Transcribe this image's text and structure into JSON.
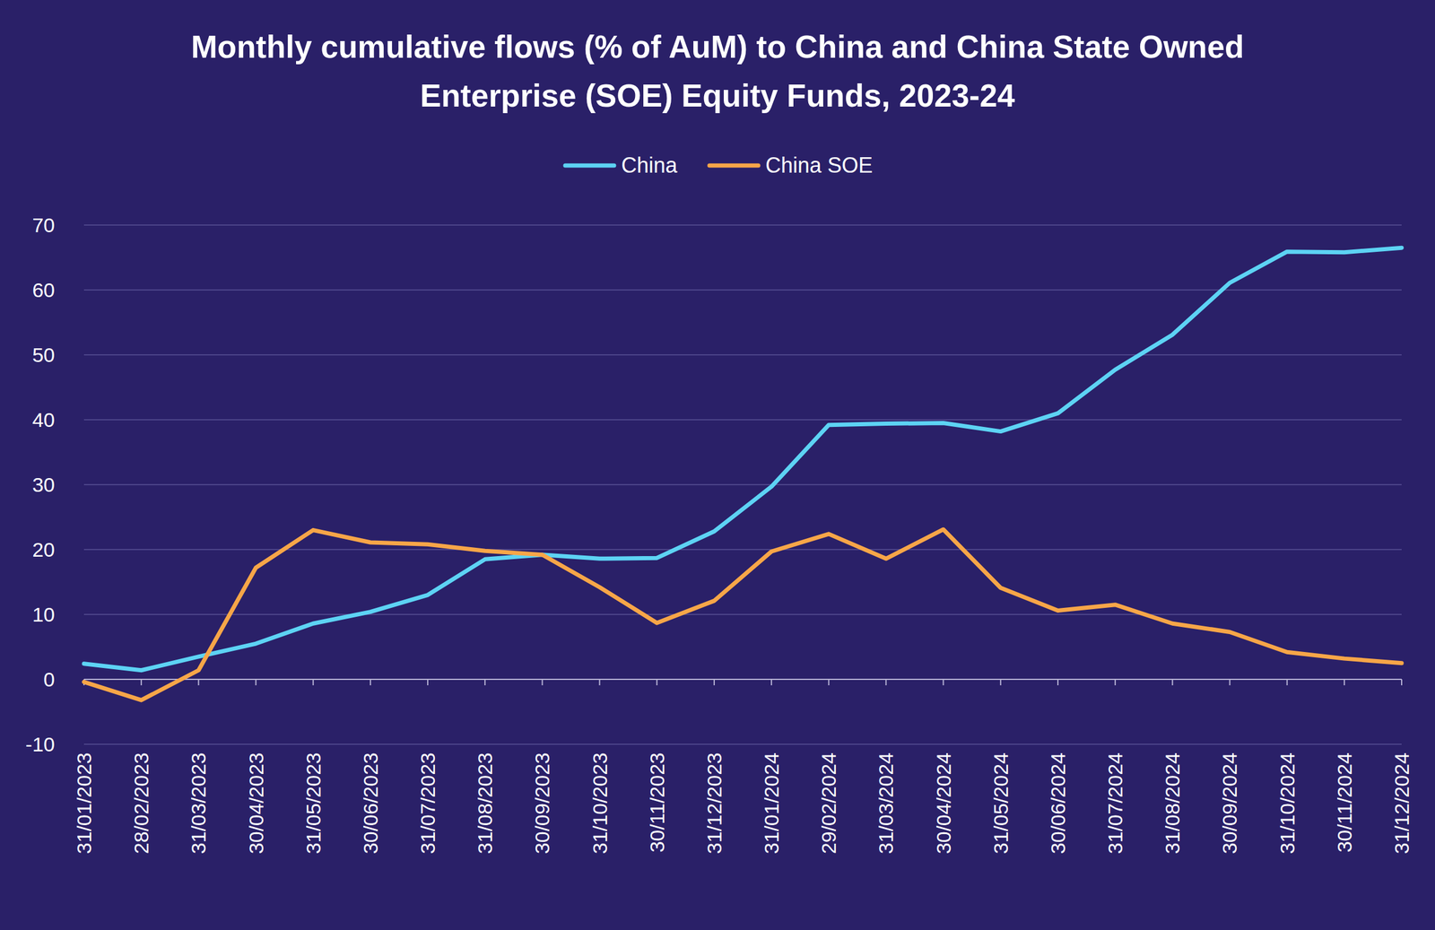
{
  "chart_data": {
    "type": "line",
    "title": "Monthly cumulative flows (% of AuM) to China and China State Owned Enterprise (SOE) Equity Funds, 2023-24",
    "categories": [
      "31/01/2023",
      "28/02/2023",
      "31/03/2023",
      "30/04/2023",
      "31/05/2023",
      "30/06/2023",
      "31/07/2023",
      "31/08/2023",
      "30/09/2023",
      "31/10/2023",
      "30/11/2023",
      "31/12/2023",
      "31/01/2024",
      "29/02/2024",
      "31/03/2024",
      "30/04/2024",
      "31/05/2024",
      "30/06/2024",
      "31/07/2024",
      "31/08/2024",
      "30/09/2024",
      "31/10/2024",
      "30/11/2024",
      "31/12/2024"
    ],
    "series": [
      {
        "name": "China",
        "color": "#5dd3f4",
        "values": [
          2.4,
          1.4,
          3.5,
          5.5,
          8.6,
          10.4,
          13.0,
          18.5,
          19.2,
          18.6,
          18.7,
          22.8,
          29.7,
          39.2,
          39.4,
          39.5,
          38.2,
          41.0,
          47.7,
          53.1,
          61.1,
          65.9,
          65.8,
          66.5
        ]
      },
      {
        "name": "China SOE",
        "color": "#f7a648",
        "values": [
          -0.4,
          -3.2,
          1.4,
          17.2,
          23.0,
          21.1,
          20.8,
          19.8,
          19.2,
          14.2,
          8.7,
          12.1,
          19.7,
          22.4,
          18.6,
          23.1,
          14.1,
          10.6,
          11.5,
          8.6,
          7.3,
          4.2,
          3.2,
          2.5
        ]
      }
    ],
    "ylim": [
      -10,
      70
    ],
    "yticks": [
      -10,
      0,
      10,
      20,
      30,
      40,
      50,
      60,
      70
    ],
    "grid": true,
    "legend": "top"
  }
}
